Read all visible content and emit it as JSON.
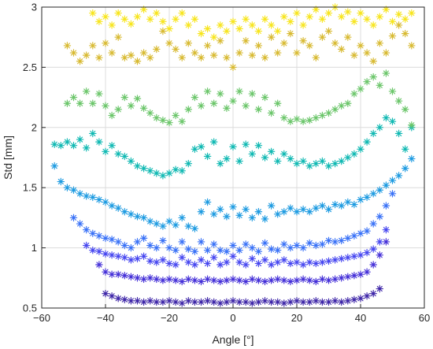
{
  "chart_data": {
    "type": "scatter",
    "title": "",
    "xlabel": "Angle [°]",
    "ylabel": "Std [mm]",
    "xlim": [
      -60,
      60
    ],
    "ylim": [
      0.5,
      3
    ],
    "xticks": [
      -60,
      -40,
      -20,
      0,
      20,
      40,
      60
    ],
    "yticks": [
      0.5,
      1,
      1.5,
      2,
      2.5,
      3
    ],
    "xtick_labels": [
      "−60",
      "−40",
      "−20",
      "0",
      "20",
      "40",
      "60"
    ],
    "ytick_labels": [
      "0.5",
      "1",
      "1.5",
      "2",
      "2.5",
      "3"
    ],
    "grid": true,
    "marker": "asterisk",
    "colormap": "parula",
    "series": [
      {
        "color": "#3e26a8",
        "x": [
          -40,
          -38,
          -36,
          -34,
          -32,
          -30,
          -28,
          -26,
          -24,
          -22,
          -20,
          -18,
          -16,
          -14,
          -12,
          -10,
          -8,
          -6,
          -4,
          -2,
          0,
          2,
          4,
          6,
          8,
          10,
          12,
          14,
          16,
          18,
          20,
          22,
          24,
          26,
          28,
          30,
          32,
          34,
          36,
          38,
          40,
          42,
          44,
          46
        ],
        "y": [
          0.62,
          0.6,
          0.58,
          0.57,
          0.56,
          0.56,
          0.55,
          0.56,
          0.55,
          0.55,
          0.56,
          0.55,
          0.54,
          0.56,
          0.55,
          0.55,
          0.56,
          0.55,
          0.54,
          0.55,
          0.56,
          0.55,
          0.55,
          0.54,
          0.55,
          0.56,
          0.55,
          0.55,
          0.54,
          0.55,
          0.56,
          0.55,
          0.55,
          0.56,
          0.55,
          0.55,
          0.56,
          0.55,
          0.56,
          0.57,
          0.58,
          0.6,
          0.62,
          0.66
        ]
      },
      {
        "color": "#4530d8",
        "x": [
          -42,
          -40,
          -38,
          -36,
          -34,
          -32,
          -30,
          -28,
          -26,
          -24,
          -22,
          -20,
          -18,
          -16,
          -14,
          -12,
          -10,
          -8,
          -6,
          -4,
          -2,
          0,
          2,
          4,
          6,
          8,
          10,
          12,
          14,
          16,
          18,
          20,
          22,
          24,
          26,
          28,
          30,
          32,
          34,
          36,
          38,
          40,
          42,
          44,
          46,
          48
        ],
        "y": [
          0.86,
          0.8,
          0.78,
          0.78,
          0.77,
          0.76,
          0.75,
          0.74,
          0.75,
          0.74,
          0.73,
          0.74,
          0.73,
          0.72,
          0.74,
          0.73,
          0.72,
          0.74,
          0.73,
          0.72,
          0.73,
          0.74,
          0.73,
          0.72,
          0.74,
          0.73,
          0.72,
          0.73,
          0.74,
          0.73,
          0.72,
          0.73,
          0.74,
          0.73,
          0.72,
          0.74,
          0.73,
          0.74,
          0.75,
          0.76,
          0.77,
          0.78,
          0.8,
          0.86,
          0.94,
          1.05
        ]
      },
      {
        "color": "#4747f0",
        "x": [
          -46,
          -44,
          -42,
          -40,
          -38,
          -36,
          -34,
          -32,
          -30,
          -28,
          -26,
          -24,
          -22,
          -20,
          -18,
          -16,
          -14,
          -12,
          -10,
          -8,
          -6,
          -4,
          -2,
          0,
          2,
          4,
          6,
          8,
          10,
          12,
          14,
          16,
          18,
          20,
          22,
          24,
          26,
          28,
          30,
          32,
          34,
          36,
          38,
          40,
          42,
          44,
          46,
          48
        ],
        "y": [
          1.02,
          0.98,
          0.97,
          0.95,
          0.94,
          0.93,
          0.92,
          0.9,
          0.91,
          0.93,
          0.89,
          0.88,
          0.9,
          0.87,
          0.86,
          0.92,
          0.88,
          0.86,
          0.9,
          0.87,
          0.92,
          0.86,
          0.88,
          0.93,
          0.88,
          0.86,
          0.91,
          0.87,
          0.9,
          0.86,
          0.88,
          0.9,
          0.87,
          0.88,
          0.86,
          0.88,
          0.87,
          0.88,
          0.89,
          0.9,
          0.91,
          0.92,
          0.93,
          0.94,
          0.96,
          0.99,
          1.05,
          1.15
        ]
      },
      {
        "color": "#3a72f7",
        "x": [
          -50,
          -48,
          -46,
          -44,
          -42,
          -40,
          -38,
          -36,
          -34,
          -32,
          -30,
          -28,
          -26,
          -24,
          -22,
          -20,
          -18,
          -16,
          -14,
          -12,
          -10,
          -8,
          -6,
          -4,
          -2,
          0,
          2,
          4,
          6,
          8,
          10,
          12,
          14,
          16,
          18,
          20,
          22,
          24,
          26,
          28,
          30,
          32,
          34,
          36,
          38,
          40,
          42,
          44,
          46,
          48,
          50
        ],
        "y": [
          1.25,
          1.2,
          1.15,
          1.12,
          1.1,
          1.08,
          1.07,
          1.05,
          1.02,
          1.0,
          1.05,
          1.08,
          1.02,
          1.0,
          1.06,
          1.0,
          0.98,
          1.05,
          0.99,
          0.97,
          1.05,
          0.98,
          1.03,
          0.98,
          0.97,
          1.02,
          0.98,
          1.03,
          1.0,
          0.97,
          1.04,
          0.99,
          0.98,
          1.03,
          1.0,
          1.02,
          1.0,
          1.04,
          1.02,
          1.03,
          1.06,
          1.05,
          1.06,
          1.08,
          1.1,
          1.12,
          1.14,
          1.2,
          1.26,
          1.35,
          1.45
        ]
      },
      {
        "color": "#1e9be1",
        "x": [
          -56,
          -54,
          -52,
          -50,
          -48,
          -46,
          -44,
          -42,
          -40,
          -38,
          -36,
          -34,
          -32,
          -30,
          -28,
          -26,
          -24,
          -22,
          -20,
          -18,
          -16,
          -14,
          -12,
          -10,
          -8,
          -6,
          -4,
          -2,
          0,
          2,
          4,
          6,
          8,
          10,
          12,
          14,
          16,
          18,
          20,
          22,
          24,
          26,
          28,
          30,
          32,
          34,
          36,
          38,
          40,
          42,
          44,
          46,
          48,
          50,
          52,
          54,
          56
        ],
        "y": [
          1.68,
          1.55,
          1.5,
          1.48,
          1.45,
          1.43,
          1.42,
          1.4,
          1.38,
          1.35,
          1.33,
          1.3,
          1.28,
          1.26,
          1.25,
          1.22,
          1.2,
          1.18,
          1.22,
          1.19,
          1.25,
          1.18,
          1.16,
          1.3,
          1.38,
          1.28,
          1.32,
          1.26,
          1.34,
          1.27,
          1.32,
          1.25,
          1.3,
          1.24,
          1.35,
          1.28,
          1.3,
          1.33,
          1.3,
          1.32,
          1.3,
          1.33,
          1.35,
          1.32,
          1.36,
          1.35,
          1.38,
          1.36,
          1.4,
          1.42,
          1.45,
          1.48,
          1.52,
          1.56,
          1.6,
          1.66,
          1.74
        ]
      },
      {
        "color": "#11b9b3",
        "x": [
          -56,
          -54,
          -52,
          -50,
          -48,
          -46,
          -44,
          -42,
          -40,
          -38,
          -36,
          -34,
          -32,
          -30,
          -28,
          -26,
          -24,
          -22,
          -20,
          -18,
          -16,
          -14,
          -12,
          -10,
          -8,
          -6,
          -4,
          -2,
          0,
          2,
          4,
          6,
          8,
          10,
          12,
          14,
          16,
          18,
          20,
          22,
          24,
          26,
          28,
          30,
          32,
          34,
          36,
          38,
          40,
          42,
          44,
          46,
          48,
          50,
          52,
          54,
          56
        ],
        "y": [
          1.86,
          1.85,
          1.88,
          1.85,
          1.9,
          1.83,
          1.95,
          1.88,
          1.8,
          1.85,
          1.78,
          1.76,
          1.72,
          1.68,
          1.66,
          1.64,
          1.62,
          1.6,
          1.62,
          1.65,
          1.64,
          1.7,
          1.82,
          1.84,
          1.76,
          1.88,
          1.7,
          1.74,
          1.84,
          1.72,
          1.86,
          1.78,
          1.85,
          1.75,
          1.8,
          1.72,
          1.78,
          1.74,
          1.7,
          1.72,
          1.68,
          1.7,
          1.72,
          1.68,
          1.7,
          1.72,
          1.75,
          1.78,
          1.82,
          1.88,
          1.95,
          2.0,
          2.08,
          2.05,
          1.95,
          1.82,
          2.0
        ]
      },
      {
        "color": "#6cc66b",
        "x": [
          -52,
          -50,
          -48,
          -46,
          -44,
          -42,
          -40,
          -38,
          -36,
          -34,
          -32,
          -30,
          -28,
          -26,
          -24,
          -22,
          -20,
          -18,
          -16,
          -14,
          -12,
          -10,
          -8,
          -6,
          -4,
          -2,
          0,
          2,
          4,
          6,
          8,
          10,
          12,
          14,
          16,
          18,
          20,
          22,
          24,
          26,
          28,
          30,
          32,
          34,
          36,
          38,
          40,
          42,
          44,
          46,
          48,
          50,
          52,
          54,
          56
        ],
        "y": [
          2.2,
          2.25,
          2.2,
          2.3,
          2.2,
          2.28,
          2.18,
          2.1,
          2.15,
          2.25,
          2.18,
          2.24,
          2.16,
          2.12,
          2.08,
          2.06,
          2.04,
          2.1,
          2.05,
          2.15,
          2.25,
          2.18,
          2.3,
          2.2,
          2.28,
          2.16,
          2.22,
          2.3,
          2.18,
          2.28,
          2.15,
          2.25,
          2.12,
          2.2,
          2.08,
          2.05,
          2.07,
          2.05,
          2.06,
          2.08,
          2.1,
          2.12,
          2.15,
          2.18,
          2.2,
          2.28,
          2.32,
          2.38,
          2.42,
          2.35,
          2.45,
          2.3,
          2.22,
          2.15,
          2.02
        ]
      },
      {
        "color": "#d8ba32",
        "x": [
          -52,
          -50,
          -48,
          -46,
          -44,
          -42,
          -40,
          -38,
          -36,
          -34,
          -32,
          -30,
          -28,
          -26,
          -24,
          -22,
          -20,
          -18,
          -16,
          -14,
          -12,
          -10,
          -8,
          -6,
          -4,
          -2,
          0,
          2,
          4,
          6,
          8,
          10,
          12,
          14,
          16,
          18,
          20,
          22,
          24,
          26,
          28,
          30,
          32,
          34,
          36,
          38,
          40,
          42,
          44,
          46,
          48,
          50,
          52,
          54,
          56
        ],
        "y": [
          2.68,
          2.62,
          2.55,
          2.6,
          2.68,
          2.58,
          2.7,
          2.62,
          2.75,
          2.58,
          2.6,
          2.55,
          2.62,
          2.58,
          2.65,
          2.8,
          2.7,
          2.65,
          2.58,
          2.7,
          2.62,
          2.58,
          2.68,
          2.6,
          2.72,
          2.58,
          2.5,
          2.62,
          2.72,
          2.6,
          2.68,
          2.58,
          2.75,
          2.62,
          2.7,
          2.78,
          2.62,
          2.72,
          2.68,
          2.58,
          2.75,
          2.8,
          2.7,
          2.65,
          2.75,
          2.6,
          2.68,
          2.62,
          2.55,
          2.7,
          2.62,
          2.76,
          2.85,
          2.78,
          2.68
        ]
      },
      {
        "color": "#f7e51f",
        "x": [
          -44,
          -42,
          -40,
          -38,
          -36,
          -34,
          -32,
          -30,
          -28,
          -26,
          -24,
          -22,
          -20,
          -18,
          -16,
          -14,
          -12,
          -10,
          -8,
          -6,
          -4,
          -2,
          0,
          2,
          4,
          6,
          8,
          10,
          12,
          14,
          16,
          18,
          20,
          22,
          24,
          26,
          28,
          30,
          32,
          34,
          36,
          38,
          40,
          42,
          44,
          46,
          48,
          50,
          52,
          54,
          56
        ],
        "y": [
          2.95,
          2.88,
          2.92,
          2.85,
          2.95,
          2.9,
          2.86,
          2.92,
          2.98,
          2.9,
          2.95,
          2.88,
          2.82,
          2.9,
          2.95,
          2.85,
          2.9,
          2.78,
          2.82,
          2.75,
          2.85,
          2.8,
          2.88,
          2.82,
          2.9,
          2.85,
          2.8,
          2.9,
          2.85,
          2.8,
          2.92,
          2.88,
          2.95,
          2.85,
          2.92,
          2.98,
          2.9,
          2.95,
          3.0,
          2.92,
          2.96,
          2.88,
          2.95,
          2.9,
          2.85,
          2.92,
          2.98,
          2.88,
          2.94,
          2.9,
          2.95
        ]
      }
    ]
  }
}
